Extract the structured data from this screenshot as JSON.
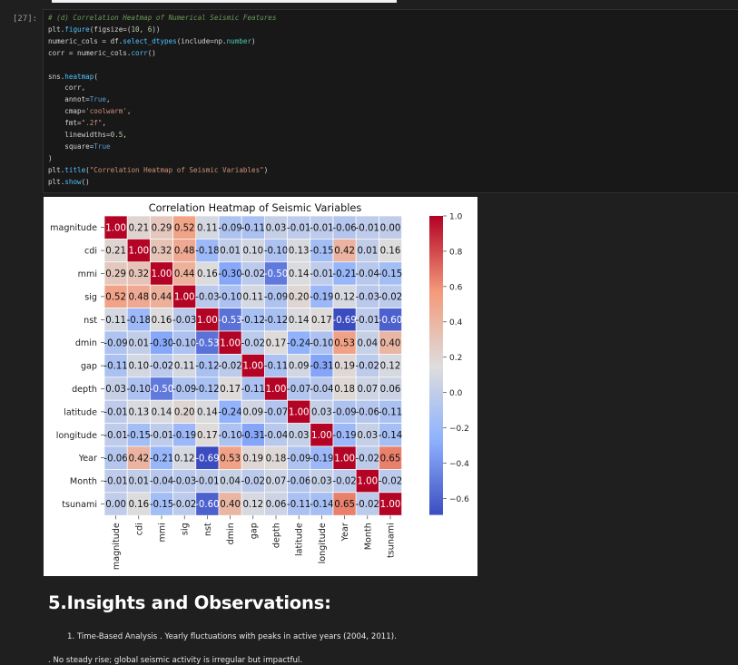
{
  "cell": {
    "prompt": "[27]:",
    "code_lines": [
      [
        {
          "c": "c-cm",
          "t": "# (d) Correlation Heatmap of Numerical Seismic Features"
        }
      ],
      [
        {
          "c": "",
          "t": "plt."
        },
        {
          "c": "c-fn",
          "t": "figure"
        },
        {
          "c": "",
          "t": "(figsize=("
        },
        {
          "c": "c-num",
          "t": "10"
        },
        {
          "c": "",
          "t": ", "
        },
        {
          "c": "c-num",
          "t": "6"
        },
        {
          "c": "",
          "t": "))"
        }
      ],
      [
        {
          "c": "",
          "t": "numeric_cols = df."
        },
        {
          "c": "c-fn",
          "t": "select_dtypes"
        },
        {
          "c": "",
          "t": "(include=np."
        },
        {
          "c": "c-tr",
          "t": "number"
        },
        {
          "c": "",
          "t": ")"
        }
      ],
      [
        {
          "c": "",
          "t": "corr = numeric_cols."
        },
        {
          "c": "c-fn",
          "t": "corr"
        },
        {
          "c": "",
          "t": "()"
        }
      ],
      [
        {
          "c": "",
          "t": ""
        }
      ],
      [
        {
          "c": "",
          "t": "sns."
        },
        {
          "c": "c-fn",
          "t": "heatmap"
        },
        {
          "c": "",
          "t": "("
        }
      ],
      [
        {
          "c": "",
          "t": "    corr,"
        }
      ],
      [
        {
          "c": "",
          "t": "    annot="
        },
        {
          "c": "c-kw",
          "t": "True"
        },
        {
          "c": "",
          "t": ","
        }
      ],
      [
        {
          "c": "",
          "t": "    cmap="
        },
        {
          "c": "c-str",
          "t": "'coolwarm'"
        },
        {
          "c": "",
          "t": ","
        }
      ],
      [
        {
          "c": "",
          "t": "    fmt="
        },
        {
          "c": "c-str",
          "t": "\".2f\""
        },
        {
          "c": "",
          "t": ","
        }
      ],
      [
        {
          "c": "",
          "t": "    linewidths="
        },
        {
          "c": "c-num",
          "t": "0.5"
        },
        {
          "c": "",
          "t": ","
        }
      ],
      [
        {
          "c": "",
          "t": "    square="
        },
        {
          "c": "c-kw",
          "t": "True"
        }
      ],
      [
        {
          "c": "",
          "t": ")"
        }
      ],
      [
        {
          "c": "",
          "t": "plt."
        },
        {
          "c": "c-fn",
          "t": "title"
        },
        {
          "c": "",
          "t": "("
        },
        {
          "c": "c-str",
          "t": "\"Correlation Heatmap of Seismic Variables\""
        },
        {
          "c": "",
          "t": ")"
        }
      ],
      [
        {
          "c": "",
          "t": "plt."
        },
        {
          "c": "c-fn",
          "t": "show"
        },
        {
          "c": "",
          "t": "()"
        }
      ]
    ]
  },
  "chart_data": {
    "type": "heatmap",
    "title": "Correlation Heatmap of Seismic Variables",
    "labels": [
      "magnitude",
      "cdi",
      "mmi",
      "sig",
      "nst",
      "dmin",
      "gap",
      "depth",
      "latitude",
      "longitude",
      "Year",
      "Month",
      "tsunami"
    ],
    "values": [
      [
        1.0,
        0.21,
        0.29,
        0.52,
        0.11,
        -0.09,
        -0.11,
        0.03,
        -0.01,
        -0.01,
        -0.06,
        -0.01,
        -0.0
      ],
      [
        0.21,
        1.0,
        0.32,
        0.48,
        -0.18,
        0.01,
        0.1,
        -0.1,
        0.13,
        -0.15,
        0.42,
        0.01,
        0.16
      ],
      [
        0.29,
        0.32,
        1.0,
        0.44,
        0.16,
        -0.3,
        -0.02,
        -0.5,
        0.14,
        -0.01,
        -0.21,
        -0.04,
        -0.15
      ],
      [
        0.52,
        0.48,
        0.44,
        1.0,
        -0.03,
        -0.1,
        0.11,
        -0.09,
        0.2,
        -0.19,
        0.12,
        -0.03,
        -0.02
      ],
      [
        0.11,
        -0.18,
        0.16,
        -0.03,
        1.0,
        -0.53,
        -0.12,
        -0.12,
        0.14,
        0.17,
        -0.69,
        -0.01,
        -0.6
      ],
      [
        -0.09,
        0.01,
        -0.3,
        -0.1,
        -0.53,
        1.0,
        -0.02,
        0.17,
        -0.24,
        -0.1,
        0.53,
        0.04,
        0.4
      ],
      [
        -0.11,
        0.1,
        -0.02,
        0.11,
        -0.12,
        -0.02,
        1.0,
        -0.11,
        0.09,
        -0.31,
        0.19,
        -0.02,
        0.12
      ],
      [
        0.03,
        -0.1,
        -0.5,
        -0.09,
        -0.12,
        0.17,
        -0.11,
        1.0,
        -0.07,
        -0.04,
        0.18,
        0.07,
        0.06
      ],
      [
        -0.01,
        0.13,
        0.14,
        0.2,
        0.14,
        -0.24,
        0.09,
        -0.07,
        1.0,
        0.03,
        -0.09,
        -0.06,
        -0.11
      ],
      [
        -0.01,
        -0.15,
        -0.01,
        -0.19,
        0.17,
        -0.1,
        -0.31,
        -0.04,
        0.03,
        1.0,
        -0.19,
        0.03,
        -0.14
      ],
      [
        -0.06,
        0.42,
        -0.21,
        0.12,
        -0.69,
        0.53,
        0.19,
        0.18,
        -0.09,
        -0.19,
        1.0,
        -0.02,
        0.65
      ],
      [
        -0.01,
        0.01,
        -0.04,
        -0.03,
        -0.01,
        0.04,
        -0.02,
        0.07,
        -0.06,
        0.03,
        -0.02,
        1.0,
        -0.02
      ],
      [
        -0.0,
        0.16,
        -0.15,
        -0.02,
        -0.6,
        0.4,
        0.12,
        0.06,
        -0.11,
        -0.14,
        0.65,
        -0.02,
        1.0
      ]
    ],
    "colorbar_ticks": [
      1.0,
      0.8,
      0.6,
      0.4,
      0.2,
      0.0,
      -0.2,
      -0.4,
      -0.6
    ],
    "colorbar_range": [
      -0.69,
      1.0
    ],
    "colormap": "coolwarm"
  },
  "insights": {
    "heading": "5.Insights and Observations:",
    "item_number": "1.",
    "item_text": "Time-Based Analysis . Yearly fluctuations with peaks in active years (2004, 2011).",
    "cut_text": ". No steady rise; global seismic activity is irregular but impactful."
  }
}
